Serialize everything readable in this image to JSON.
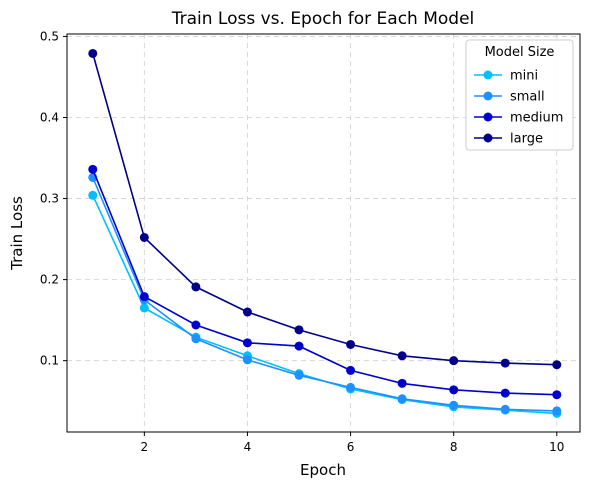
{
  "chart_data": {
    "type": "line",
    "title": "Train Loss vs. Epoch for Each Model",
    "xlabel": "Epoch",
    "ylabel": "Train Loss",
    "xlim": [
      0.5,
      10.45
    ],
    "ylim": [
      0.012,
      0.503
    ],
    "xticks": [
      2,
      4,
      6,
      8,
      10
    ],
    "yticks": [
      0.1,
      0.2,
      0.3,
      0.4,
      0.5
    ],
    "grid": true,
    "legend": {
      "title": "Model Size",
      "placement": "top-right"
    },
    "x": [
      1,
      2,
      3,
      4,
      5,
      6,
      7,
      8,
      9,
      10
    ],
    "series": [
      {
        "name": "mini",
        "color": "#00bfff",
        "values": [
          0.304,
          0.165,
          0.129,
          0.106,
          0.084,
          0.065,
          0.052,
          0.043,
          0.039,
          0.035
        ]
      },
      {
        "name": "small",
        "color": "#1e90ff",
        "values": [
          0.326,
          0.175,
          0.127,
          0.101,
          0.082,
          0.067,
          0.053,
          0.045,
          0.04,
          0.038
        ]
      },
      {
        "name": "medium",
        "color": "#0000cd",
        "values": [
          0.336,
          0.179,
          0.144,
          0.122,
          0.118,
          0.088,
          0.072,
          0.064,
          0.06,
          0.058
        ]
      },
      {
        "name": "large",
        "color": "#00008b",
        "values": [
          0.479,
          0.252,
          0.191,
          0.16,
          0.138,
          0.12,
          0.106,
          0.1,
          0.097,
          0.095
        ]
      }
    ]
  }
}
